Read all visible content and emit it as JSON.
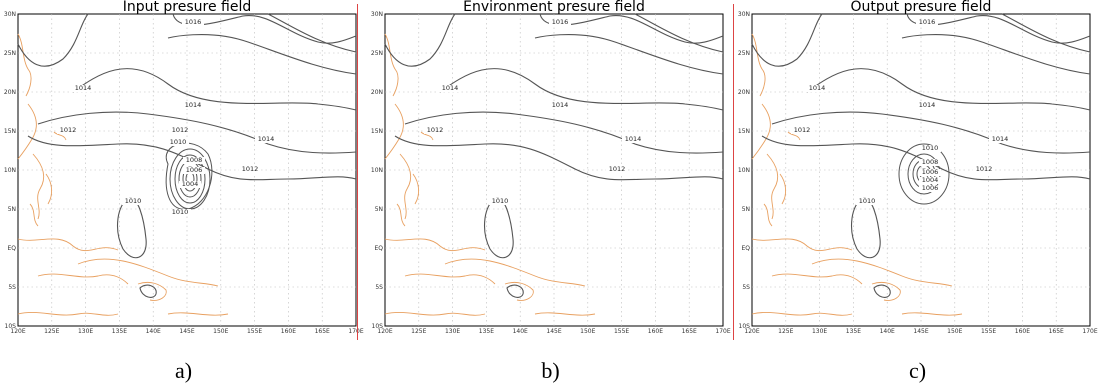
{
  "panels": [
    {
      "title": "Input presure field",
      "caption": "a)",
      "vortex": "input"
    },
    {
      "title": "Environment presure field",
      "caption": "b)",
      "vortex": "none"
    },
    {
      "title": "Output presure field",
      "caption": "c)",
      "vortex": "output"
    }
  ],
  "x_ticks": [
    "120E",
    "125E",
    "130E",
    "135E",
    "140E",
    "145E",
    "150E",
    "155E",
    "160E",
    "165E",
    "170E"
  ],
  "y_ticks": [
    "30N",
    "25N",
    "20N",
    "15N",
    "10N",
    "5N",
    "EQ",
    "5S",
    "10S"
  ],
  "contour_labels_common": [
    "1016",
    "1014",
    "1014",
    "1012",
    "1014",
    "1012",
    "1010"
  ],
  "contour_labels_input": [
    "1012",
    "1010",
    "1008",
    "1006",
    "1004",
    "1010"
  ],
  "contour_labels_output": [
    "1010",
    "1008",
    "1006",
    "1004",
    "1006"
  ],
  "colors": {
    "coast": "#e8a060",
    "contour": "#555555",
    "grid": "#bbbbbb",
    "divider": "#dd4444"
  }
}
